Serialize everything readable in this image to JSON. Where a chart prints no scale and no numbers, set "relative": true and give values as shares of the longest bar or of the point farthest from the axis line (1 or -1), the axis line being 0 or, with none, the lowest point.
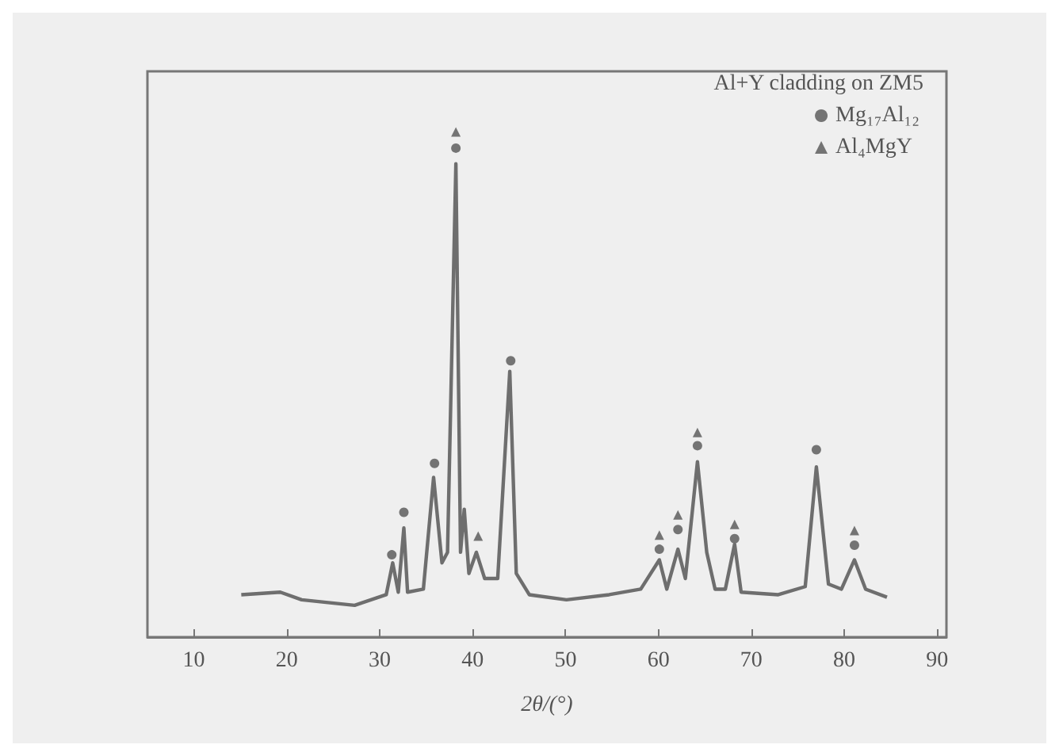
{
  "chart_data": {
    "type": "line",
    "relative": true,
    "legend_title": "Al+Y cladding on ZM5",
    "xlabel": "2θ/(°)",
    "xlim": [
      5,
      91
    ],
    "xticks": [
      10,
      20,
      30,
      40,
      50,
      60,
      70,
      80,
      90
    ],
    "legend": "top right",
    "grid": false,
    "marker": "none",
    "series": [
      {
        "color": "#6e6e6e",
        "x": [
          15.1,
          19.3,
          21.6,
          27.3,
          30.7,
          31.4,
          32.0,
          32.6,
          33.0,
          34.7,
          35.8,
          36.7,
          37.3,
          38.2,
          38.7,
          39.1,
          39.6,
          40.4,
          41.3,
          42.7,
          44.0,
          44.7,
          46.1,
          50.1,
          54.7,
          58.1,
          60.1,
          60.9,
          62.1,
          62.9,
          64.2,
          65.2,
          66.1,
          67.2,
          68.2,
          68.9,
          72.9,
          75.8,
          77.0,
          78.3,
          79.7,
          81.1,
          82.3,
          84.6
        ],
        "values": [
          0.084,
          0.089,
          0.074,
          0.063,
          0.084,
          0.147,
          0.089,
          0.216,
          0.089,
          0.095,
          0.316,
          0.147,
          0.168,
          0.937,
          0.168,
          0.253,
          0.126,
          0.168,
          0.116,
          0.116,
          0.526,
          0.126,
          0.084,
          0.074,
          0.084,
          0.095,
          0.153,
          0.095,
          0.174,
          0.116,
          0.347,
          0.168,
          0.095,
          0.095,
          0.184,
          0.089,
          0.084,
          0.1,
          0.337,
          0.105,
          0.095,
          0.153,
          0.095,
          0.079
        ]
      },
      {
        "type": "scatter",
        "name": "Mg₁₇Al₁₂",
        "marker": "circle",
        "color": "#555555",
        "x": [
          31.3,
          32.6,
          35.9,
          38.2,
          44.1,
          60.1,
          62.1,
          64.2,
          68.2,
          77.0,
          81.1
        ],
        "values": [
          0.163,
          0.247,
          0.344,
          0.968,
          0.547,
          0.174,
          0.213,
          0.379,
          0.195,
          0.371,
          0.182
        ]
      },
      {
        "type": "scatter",
        "name": "Al₄MgY",
        "marker": "triangle",
        "color": "#555555",
        "x": [
          38.2,
          40.6,
          60.1,
          62.1,
          64.2,
          68.2,
          81.1
        ],
        "values": [
          1.0,
          0.2,
          0.202,
          0.242,
          0.405,
          0.223,
          0.211
        ]
      }
    ]
  }
}
